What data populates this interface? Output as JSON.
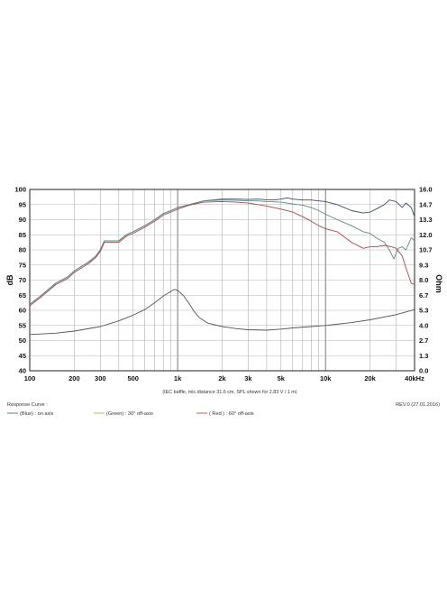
{
  "chart_data": {
    "type": "line",
    "x_scale": "log",
    "xlim": [
      100,
      40000
    ],
    "ylim": [
      40,
      100
    ],
    "y2lim": [
      0,
      16
    ],
    "grid": true,
    "ylabel": "dB",
    "y2label": "Ohm",
    "x_ticks": [
      {
        "value": 100,
        "label": "100"
      },
      {
        "value": 200,
        "label": "200"
      },
      {
        "value": 300,
        "label": "300"
      },
      {
        "value": 500,
        "label": "500"
      },
      {
        "value": 1000,
        "label": "1k"
      },
      {
        "value": 2000,
        "label": "2k"
      },
      {
        "value": 3000,
        "label": "3k"
      },
      {
        "value": 5000,
        "label": "5k"
      },
      {
        "value": 10000,
        "label": "10k"
      },
      {
        "value": 20000,
        "label": "20k"
      },
      {
        "value": 40000,
        "label": "40kHz"
      }
    ],
    "y_ticks": [
      "40",
      "45",
      "50",
      "55",
      "60",
      "65",
      "70",
      "75",
      "80",
      "85",
      "90",
      "95",
      "100"
    ],
    "y2_ticks": [
      "0.0",
      "1.3",
      "2.7",
      "4.0",
      "5.3",
      "6.7",
      "8.0",
      "9.3",
      "10.7",
      "12.0",
      "13.3",
      "14.7",
      "16.0"
    ],
    "note": "(IEC baffle, mic.distance 31.6 cm, SPL shown for 2.83 V / 1 m)",
    "legend_title": "Response Curve :",
    "revision": "REV.0 (27.01.2016)",
    "legend": [
      {
        "label": "(Blue) : on axis",
        "color": "#4f6b86"
      },
      {
        "label": "(Green) : 30° off-axis",
        "color": "#b9b24c"
      },
      {
        "label": "( Red ) : 60° off-axis",
        "color": "#c0504d"
      }
    ],
    "series": [
      {
        "color": "#3d4e66",
        "axis": "left",
        "points": [
          [
            100,
            62
          ],
          [
            120,
            65
          ],
          [
            150,
            69
          ],
          [
            180,
            71
          ],
          [
            200,
            73
          ],
          [
            250,
            76
          ],
          [
            280,
            78
          ],
          [
            300,
            80
          ],
          [
            320,
            83
          ],
          [
            350,
            83
          ],
          [
            400,
            83
          ],
          [
            450,
            85
          ],
          [
            500,
            86
          ],
          [
            600,
            88
          ],
          [
            700,
            90
          ],
          [
            800,
            92
          ],
          [
            900,
            93
          ],
          [
            1000,
            94
          ],
          [
            1200,
            95
          ],
          [
            1500,
            96.2
          ],
          [
            2000,
            96.8
          ],
          [
            2500,
            96.8
          ],
          [
            3000,
            96.7
          ],
          [
            3500,
            96.8
          ],
          [
            4000,
            96.6
          ],
          [
            4500,
            96.5
          ],
          [
            5000,
            96.8
          ],
          [
            5500,
            97.2
          ],
          [
            6000,
            96.8
          ],
          [
            7000,
            96.5
          ],
          [
            8000,
            96.5
          ],
          [
            9000,
            96.2
          ],
          [
            10000,
            96
          ],
          [
            12000,
            95
          ],
          [
            15000,
            93
          ],
          [
            18000,
            92.2
          ],
          [
            20000,
            92.5
          ],
          [
            22000,
            93.5
          ],
          [
            25000,
            95
          ],
          [
            27000,
            96.5
          ],
          [
            30000,
            96
          ],
          [
            33000,
            94
          ],
          [
            35000,
            95.5
          ],
          [
            38000,
            94
          ],
          [
            40000,
            91
          ]
        ]
      },
      {
        "color": "#5d8a7f",
        "axis": "left",
        "points": [
          [
            100,
            62
          ],
          [
            120,
            65
          ],
          [
            150,
            69
          ],
          [
            180,
            71
          ],
          [
            200,
            73
          ],
          [
            250,
            76
          ],
          [
            280,
            78
          ],
          [
            300,
            80
          ],
          [
            320,
            83
          ],
          [
            350,
            83
          ],
          [
            400,
            83
          ],
          [
            450,
            85
          ],
          [
            500,
            86
          ],
          [
            600,
            88
          ],
          [
            700,
            90
          ],
          [
            800,
            92
          ],
          [
            900,
            93
          ],
          [
            1000,
            94
          ],
          [
            1200,
            95
          ],
          [
            1500,
            96.2
          ],
          [
            2000,
            96.5
          ],
          [
            2500,
            96.4
          ],
          [
            3000,
            96.2
          ],
          [
            3500,
            96.2
          ],
          [
            4000,
            96
          ],
          [
            5000,
            95.8
          ],
          [
            6000,
            95.2
          ],
          [
            7000,
            94.8
          ],
          [
            8000,
            94
          ],
          [
            9000,
            93
          ],
          [
            10000,
            91.8
          ],
          [
            12000,
            90
          ],
          [
            15000,
            88
          ],
          [
            18000,
            86
          ],
          [
            20000,
            85.5
          ],
          [
            22000,
            84
          ],
          [
            25000,
            82.5
          ],
          [
            27000,
            80
          ],
          [
            29000,
            77
          ],
          [
            31000,
            80.5
          ],
          [
            33000,
            81
          ],
          [
            35000,
            80
          ],
          [
            38000,
            84
          ],
          [
            40000,
            83
          ]
        ]
      },
      {
        "color": "#a44a4e",
        "axis": "left",
        "points": [
          [
            100,
            61.5
          ],
          [
            120,
            64.5
          ],
          [
            150,
            68.5
          ],
          [
            180,
            70.5
          ],
          [
            200,
            72.5
          ],
          [
            250,
            75.5
          ],
          [
            280,
            77.5
          ],
          [
            300,
            79.5
          ],
          [
            320,
            82.5
          ],
          [
            350,
            82.5
          ],
          [
            400,
            82.5
          ],
          [
            450,
            84.5
          ],
          [
            500,
            85.5
          ],
          [
            600,
            87.5
          ],
          [
            700,
            89.5
          ],
          [
            800,
            91.5
          ],
          [
            900,
            92.5
          ],
          [
            1000,
            93.5
          ],
          [
            1200,
            94.8
          ],
          [
            1500,
            95.8
          ],
          [
            2000,
            96
          ],
          [
            2500,
            95.8
          ],
          [
            3000,
            95.5
          ],
          [
            3500,
            95
          ],
          [
            4000,
            94.5
          ],
          [
            5000,
            93.5
          ],
          [
            6000,
            92.5
          ],
          [
            7000,
            91
          ],
          [
            8000,
            89.5
          ],
          [
            9000,
            88
          ],
          [
            10000,
            87
          ],
          [
            12000,
            86
          ],
          [
            15000,
            82.5
          ],
          [
            18000,
            80.5
          ],
          [
            20000,
            81
          ],
          [
            22000,
            81
          ],
          [
            25000,
            81.5
          ],
          [
            28000,
            81
          ],
          [
            30000,
            80.5
          ],
          [
            33000,
            78
          ],
          [
            35000,
            74
          ],
          [
            38000,
            69
          ],
          [
            40000,
            68.5
          ]
        ]
      },
      {
        "color": "#555555",
        "axis": "right",
        "points": [
          [
            100,
            3.2
          ],
          [
            150,
            3.32
          ],
          [
            200,
            3.5
          ],
          [
            300,
            3.9
          ],
          [
            400,
            4.4
          ],
          [
            500,
            4.9
          ],
          [
            600,
            5.4
          ],
          [
            700,
            6.0
          ],
          [
            800,
            6.6
          ],
          [
            900,
            7.0
          ],
          [
            950,
            7.18
          ],
          [
            1000,
            7.1
          ],
          [
            1100,
            6.6
          ],
          [
            1200,
            5.9
          ],
          [
            1300,
            5.2
          ],
          [
            1400,
            4.7
          ],
          [
            1600,
            4.2
          ],
          [
            2000,
            3.9
          ],
          [
            2500,
            3.72
          ],
          [
            3000,
            3.62
          ],
          [
            4000,
            3.58
          ],
          [
            5000,
            3.68
          ],
          [
            6000,
            3.78
          ],
          [
            8000,
            3.9
          ],
          [
            10000,
            4.0
          ],
          [
            15000,
            4.25
          ],
          [
            20000,
            4.5
          ],
          [
            30000,
            4.95
          ],
          [
            40000,
            5.4
          ]
        ]
      }
    ]
  }
}
